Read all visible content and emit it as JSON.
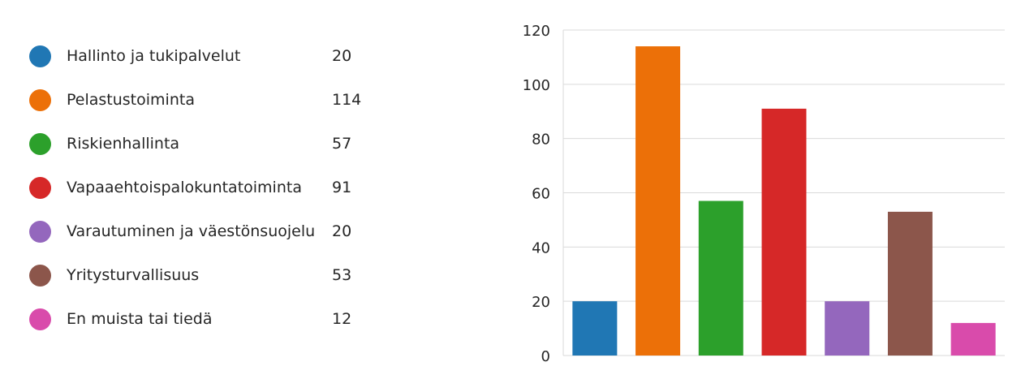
{
  "legend": {
    "items": [
      {
        "label": "Hallinto ja tukipalvelut",
        "value": "20",
        "color": "#2077b4"
      },
      {
        "label": "Pelastustoiminta",
        "value": "114",
        "color": "#ec7008"
      },
      {
        "label": "Riskienhallinta",
        "value": "57",
        "color": "#2ca02b"
      },
      {
        "label": "Vapaaehtoispalokuntatoiminta",
        "value": "91",
        "color": "#d62828"
      },
      {
        "label": "Varautuminen ja väestönsuojelu",
        "value": "20",
        "color": "#9467bd"
      },
      {
        "label": "Yritysturvallisuus",
        "value": "53",
        "color": "#8c564b"
      },
      {
        "label": "En muista tai tiedä",
        "value": "12",
        "color": "#d94bab"
      }
    ]
  },
  "chart_data": {
    "type": "bar",
    "categories": [
      "Hallinto ja tukipalvelut",
      "Pelastustoiminta",
      "Riskienhallinta",
      "Vapaaehtoispalokuntatoiminta",
      "Varautuminen ja väestönsuojelu",
      "Yritysturvallisuus",
      "En muista tai tiedä"
    ],
    "values": [
      20,
      114,
      57,
      91,
      20,
      53,
      12
    ],
    "colors": [
      "#2077b4",
      "#ec7008",
      "#2ca02b",
      "#d62828",
      "#9467bd",
      "#8c564b",
      "#d94bab"
    ],
    "ylim": [
      0,
      120
    ],
    "yticks": [
      0,
      20,
      40,
      60,
      80,
      100,
      120
    ],
    "grid": true
  }
}
